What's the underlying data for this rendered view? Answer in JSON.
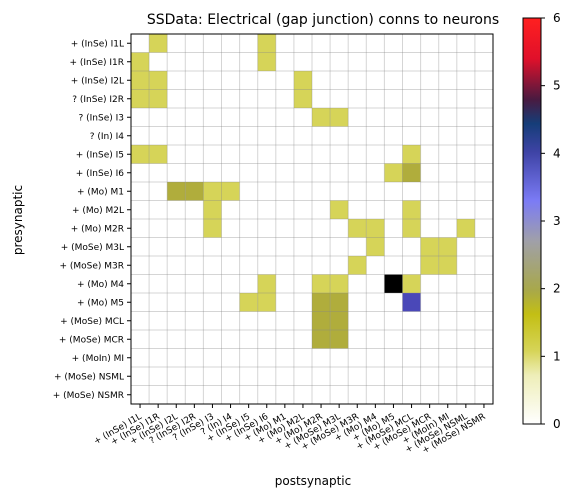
{
  "chart_data": {
    "type": "heatmap",
    "title": "SSData: Electrical (gap junction) conns to neurons",
    "xlabel": "postsynaptic",
    "ylabel": "presynaptic",
    "rows": [
      "+ (InSe) I1L",
      "+ (InSe) I1R",
      "+ (InSe) I2L",
      "? (InSe) I2R",
      "? (InSe) I3",
      "? (In) I4",
      "+ (InSe) I5",
      "+ (InSe) I6",
      "+ (Mo) M1",
      "+ (Mo) M2L",
      "+ (Mo) M2R",
      "+ (MoSe) M3L",
      "+ (MoSe) M3R",
      "+ (Mo) M4",
      "+ (Mo) M5",
      "+ (MoSe) MCL",
      "+ (MoSe) MCR",
      "+ (MoIn) MI",
      "+ (MoSe) NSML",
      "+ (MoSe) NSMR"
    ],
    "columns": [
      "+ (InSe) I1L",
      "+ (InSe) I1R",
      "+ (InSe) I2L",
      "? (InSe) I2R",
      "? (InSe) I3",
      "? (In) I4",
      "+ (InSe) I5",
      "+ (InSe) I6",
      "+ (Mo) M1",
      "+ (Mo) M2L",
      "+ (Mo) M2R",
      "+ (MoSe) M3L",
      "+ (MoSe) M3R",
      "+ (Mo) M4",
      "+ (Mo) M5",
      "+ (MoSe) MCL",
      "+ (MoSe) MCR",
      "+ (MoIn) MI",
      "+ (MoSe) NSML",
      "+ (MoSe) NSMR"
    ],
    "values": [
      [
        0,
        1,
        0,
        0,
        0,
        0,
        0,
        1,
        0,
        0,
        0,
        0,
        0,
        0,
        0,
        0,
        0,
        0,
        0,
        0
      ],
      [
        1,
        0,
        0,
        0,
        0,
        0,
        0,
        1,
        0,
        0,
        0,
        0,
        0,
        0,
        0,
        0,
        0,
        0,
        0,
        0
      ],
      [
        1,
        1,
        0,
        0,
        0,
        0,
        0,
        0,
        0,
        1,
        0,
        0,
        0,
        0,
        0,
        0,
        0,
        0,
        0,
        0
      ],
      [
        1,
        1,
        0,
        0,
        0,
        0,
        0,
        0,
        0,
        1,
        0,
        0,
        0,
        0,
        0,
        0,
        0,
        0,
        0,
        0
      ],
      [
        0,
        0,
        0,
        0,
        0,
        0,
        0,
        0,
        0,
        0,
        1,
        1,
        0,
        0,
        0,
        0,
        0,
        0,
        0,
        0
      ],
      [
        0,
        0,
        0,
        0,
        0,
        0,
        0,
        0,
        0,
        0,
        0,
        0,
        0,
        0,
        0,
        0,
        0,
        0,
        0,
        0
      ],
      [
        1,
        1,
        0,
        0,
        0,
        0,
        0,
        0,
        0,
        0,
        0,
        0,
        0,
        0,
        0,
        1,
        0,
        0,
        0,
        0
      ],
      [
        0,
        0,
        0,
        0,
        0,
        0,
        0,
        0,
        0,
        0,
        0,
        0,
        0,
        0,
        1,
        2,
        0,
        0,
        0,
        0
      ],
      [
        0,
        0,
        2,
        2,
        1,
        1,
        0,
        0,
        0,
        0,
        0,
        0,
        0,
        0,
        0,
        0,
        0,
        0,
        0,
        0
      ],
      [
        0,
        0,
        0,
        0,
        1,
        0,
        0,
        0,
        0,
        0,
        0,
        1,
        0,
        0,
        0,
        1,
        0,
        0,
        0,
        0
      ],
      [
        0,
        0,
        0,
        0,
        1,
        0,
        0,
        0,
        0,
        0,
        0,
        0,
        1,
        1,
        0,
        1,
        0,
        0,
        1,
        0
      ],
      [
        0,
        0,
        0,
        0,
        0,
        0,
        0,
        0,
        0,
        0,
        0,
        0,
        0,
        1,
        0,
        0,
        1,
        1,
        0,
        0
      ],
      [
        0,
        0,
        0,
        0,
        0,
        0,
        0,
        0,
        0,
        0,
        0,
        0,
        1,
        0,
        0,
        0,
        1,
        1,
        0,
        0
      ],
      [
        0,
        0,
        0,
        0,
        0,
        0,
        0,
        1,
        0,
        0,
        1,
        1,
        0,
        0,
        6,
        1,
        0,
        0,
        0,
        0
      ],
      [
        0,
        0,
        0,
        0,
        0,
        0,
        1,
        1,
        0,
        0,
        2,
        2,
        0,
        0,
        0,
        4,
        0,
        0,
        0,
        0
      ],
      [
        0,
        0,
        0,
        0,
        0,
        0,
        0,
        0,
        0,
        0,
        2,
        2,
        0,
        0,
        0,
        0,
        0,
        0,
        0,
        0
      ],
      [
        0,
        0,
        0,
        0,
        0,
        0,
        0,
        0,
        0,
        0,
        2,
        2,
        0,
        0,
        0,
        0,
        0,
        0,
        0,
        0
      ],
      [
        0,
        0,
        0,
        0,
        0,
        0,
        0,
        0,
        0,
        0,
        0,
        0,
        0,
        0,
        0,
        0,
        0,
        0,
        0,
        0
      ],
      [
        0,
        0,
        0,
        0,
        0,
        0,
        0,
        0,
        0,
        0,
        0,
        0,
        0,
        0,
        0,
        0,
        0,
        0,
        0,
        0
      ],
      [
        0,
        0,
        0,
        0,
        0,
        0,
        0,
        0,
        0,
        0,
        0,
        0,
        0,
        0,
        0,
        0,
        0,
        0,
        0,
        0
      ]
    ],
    "colorbar": {
      "min": 0,
      "max": 6,
      "ticks": [
        0,
        1,
        2,
        3,
        4,
        5,
        6
      ]
    },
    "grid": true
  }
}
